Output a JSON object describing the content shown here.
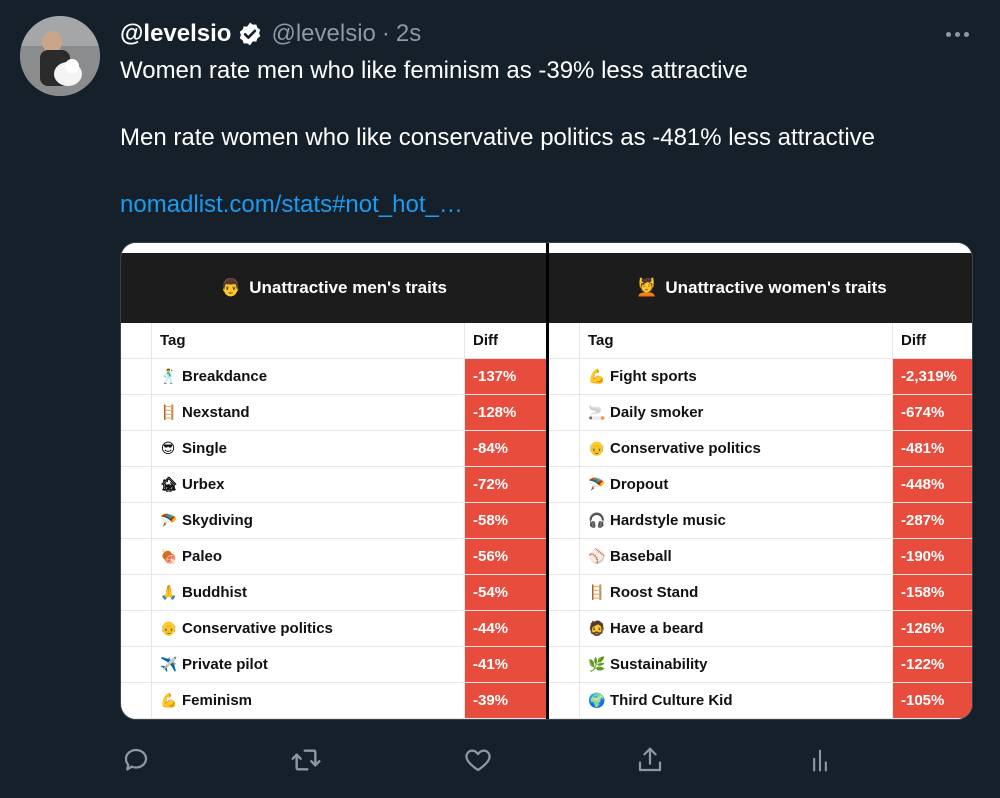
{
  "tweet": {
    "display_name": "@levelsio",
    "handle": "@levelsio",
    "separator": "·",
    "time": "2s",
    "text_line1": "Women rate men who like feminism as -39% less attractive",
    "text_line2": "Men rate women who like conservative politics as -481% less attractive",
    "link": "nomadlist.com/stats#not_hot_…"
  },
  "left_table": {
    "header_emoji": "👨",
    "title": "Unattractive men's traits",
    "col_tag": "Tag",
    "col_diff": "Diff",
    "rows": [
      {
        "emoji": "🕺",
        "tag": "Breakdance",
        "diff": "-137%"
      },
      {
        "emoji": "🪜",
        "tag": "Nexstand",
        "diff": "-128%"
      },
      {
        "emoji": "😎",
        "tag": "Single",
        "diff": "-84%"
      },
      {
        "emoji": "🏚",
        "tag": "Urbex",
        "diff": "-72%"
      },
      {
        "emoji": "🪂",
        "tag": "Skydiving",
        "diff": "-58%"
      },
      {
        "emoji": "🍖",
        "tag": "Paleo",
        "diff": "-56%"
      },
      {
        "emoji": "🙏",
        "tag": "Buddhist",
        "diff": "-54%"
      },
      {
        "emoji": "👴",
        "tag": "Conservative politics",
        "diff": "-44%"
      },
      {
        "emoji": "✈️",
        "tag": "Private pilot",
        "diff": "-41%"
      },
      {
        "emoji": "💪",
        "tag": "Feminism",
        "diff": "-39%"
      }
    ]
  },
  "right_table": {
    "header_emoji": "💆",
    "title": "Unattractive women's traits",
    "col_tag": "Tag",
    "col_diff": "Diff",
    "rows": [
      {
        "emoji": "💪",
        "tag": "Fight sports",
        "diff": "-2,319%"
      },
      {
        "emoji": "🚬",
        "tag": "Daily smoker",
        "diff": "-674%"
      },
      {
        "emoji": "👴",
        "tag": "Conservative politics",
        "diff": "-481%"
      },
      {
        "emoji": "🪂",
        "tag": "Dropout",
        "diff": "-448%"
      },
      {
        "emoji": "🎧",
        "tag": "Hardstyle music",
        "diff": "-287%"
      },
      {
        "emoji": "⚾",
        "tag": "Baseball",
        "diff": "-190%"
      },
      {
        "emoji": "🪜",
        "tag": "Roost Stand",
        "diff": "-158%"
      },
      {
        "emoji": "🧔",
        "tag": "Have a beard",
        "diff": "-126%"
      },
      {
        "emoji": "🌿",
        "tag": "Sustainability",
        "diff": "-122%"
      },
      {
        "emoji": "🌍",
        "tag": "Third Culture Kid",
        "diff": "-105%"
      }
    ]
  },
  "actions": {
    "reply": "reply-icon",
    "retweet": "retweet-icon",
    "like": "heart-icon",
    "share": "share-icon",
    "analytics": "analytics-icon"
  },
  "colors": {
    "background": "#15202b",
    "link": "#1d9bf0",
    "muted": "#8b98a5",
    "diff_cell": "#e74c3c",
    "table_header": "#1c1c1c"
  }
}
